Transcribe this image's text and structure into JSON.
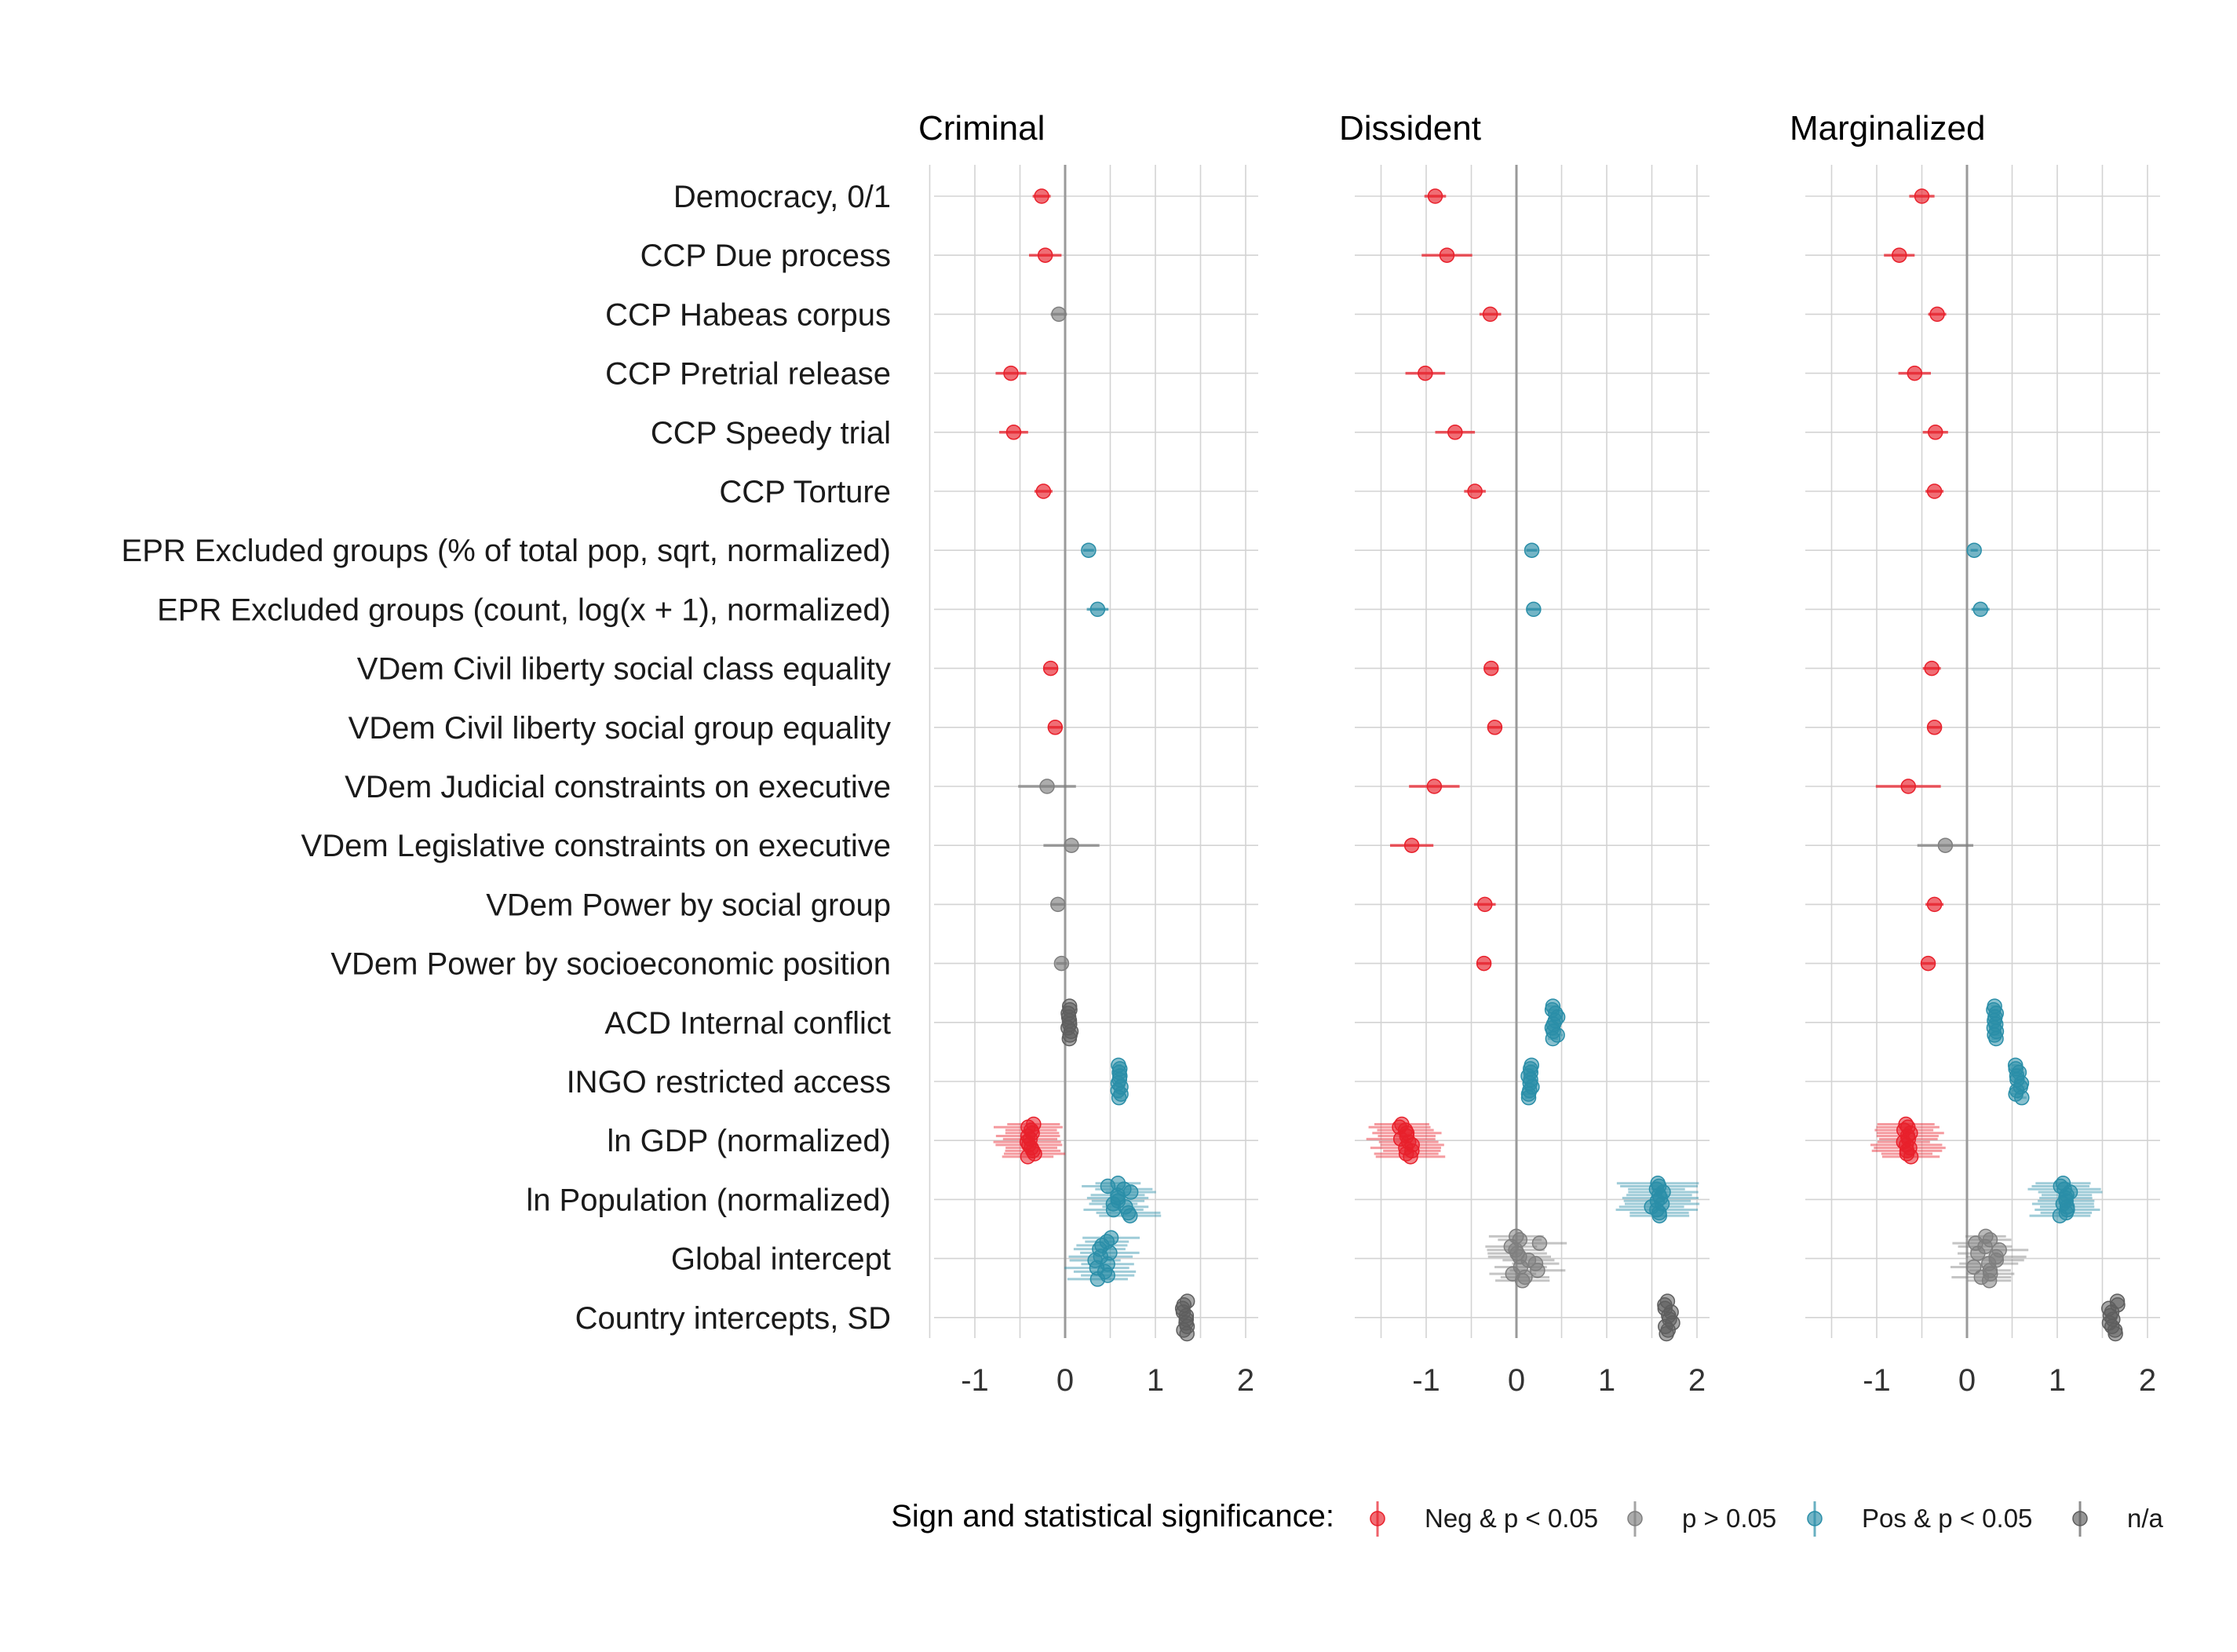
{
  "chart_data": {
    "type": "scatter",
    "subtype": "coefficient-plot",
    "facets": [
      "Criminal",
      "Dissident",
      "Marginalized"
    ],
    "rows": [
      "Democracy, 0/1",
      "CCP Due process",
      "CCP Habeas corpus",
      "CCP Pretrial release",
      "CCP Speedy trial",
      "CCP Torture",
      "EPR Excluded groups (% of total pop, sqrt, normalized)",
      "EPR Excluded groups (count, log(x + 1), normalized)",
      "VDem Civil liberty social class equality",
      "VDem Civil liberty social group equality",
      "VDem Judicial constraints on executive",
      "VDem Legislative constraints on executive",
      "VDem Power by social group",
      "VDem Power by socioeconomic position",
      "ACD Internal conflict",
      "INGO restricted access",
      "ln GDP (normalized)",
      "ln Population (normalized)",
      "Global intercept",
      "Country intercepts, SD"
    ],
    "x_ticks": [
      "-1",
      "0",
      "1",
      "2"
    ],
    "x_tick_values": [
      -1,
      0,
      1,
      2
    ],
    "xlim": [
      -1.45,
      2.2
    ],
    "legend": {
      "title": "Sign and statistical significance:",
      "entries": [
        {
          "label": "Neg & p < 0.05",
          "color": "#e8202b"
        },
        {
          "label": "p > 0.05",
          "color": "#7f7f7f"
        },
        {
          "label": "Pos & p < 0.05",
          "color": "#2a8ea8"
        },
        {
          "label": "n/a",
          "color": "#5e5e5e"
        }
      ],
      "position": "bottom"
    },
    "colors": {
      "neg": "#e8202b",
      "ns": "#7f7f7f",
      "pos": "#2a8ea8",
      "na": "#5e5e5e"
    },
    "estimates": {
      "Criminal": [
        {
          "est": -0.26,
          "lo": -0.36,
          "hi": -0.16,
          "sig": "neg"
        },
        {
          "est": -0.22,
          "lo": -0.4,
          "hi": -0.04,
          "sig": "neg"
        },
        {
          "est": -0.07,
          "lo": -0.16,
          "hi": 0.02,
          "sig": "ns"
        },
        {
          "est": -0.6,
          "lo": -0.77,
          "hi": -0.43,
          "sig": "neg"
        },
        {
          "est": -0.57,
          "lo": -0.73,
          "hi": -0.41,
          "sig": "neg"
        },
        {
          "est": -0.24,
          "lo": -0.34,
          "hi": -0.14,
          "sig": "neg"
        },
        {
          "est": 0.26,
          "lo": 0.2,
          "hi": 0.32,
          "sig": "pos"
        },
        {
          "est": 0.36,
          "lo": 0.24,
          "hi": 0.48,
          "sig": "pos"
        },
        {
          "est": -0.16,
          "lo": -0.24,
          "hi": -0.08,
          "sig": "neg"
        },
        {
          "est": -0.11,
          "lo": -0.19,
          "hi": -0.03,
          "sig": "neg"
        },
        {
          "est": -0.2,
          "lo": -0.52,
          "hi": 0.12,
          "sig": "ns"
        },
        {
          "est": 0.07,
          "lo": -0.24,
          "hi": 0.38,
          "sig": "ns"
        },
        {
          "est": -0.08,
          "lo": -0.16,
          "hi": 0.0,
          "sig": "ns"
        },
        {
          "est": -0.04,
          "lo": -0.1,
          "hi": 0.02,
          "sig": "ns"
        }
      ],
      "Dissident": [
        {
          "est": -0.9,
          "lo": -1.02,
          "hi": -0.78,
          "sig": "neg"
        },
        {
          "est": -0.77,
          "lo": -1.05,
          "hi": -0.49,
          "sig": "neg"
        },
        {
          "est": -0.29,
          "lo": -0.41,
          "hi": -0.17,
          "sig": "neg"
        },
        {
          "est": -1.01,
          "lo": -1.23,
          "hi": -0.79,
          "sig": "neg"
        },
        {
          "est": -0.68,
          "lo": -0.9,
          "hi": -0.46,
          "sig": "neg"
        },
        {
          "est": -0.46,
          "lo": -0.58,
          "hi": -0.34,
          "sig": "neg"
        },
        {
          "est": 0.17,
          "lo": 0.11,
          "hi": 0.23,
          "sig": "pos"
        },
        {
          "est": 0.19,
          "lo": 0.11,
          "hi": 0.27,
          "sig": "pos"
        },
        {
          "est": -0.28,
          "lo": -0.36,
          "hi": -0.2,
          "sig": "neg"
        },
        {
          "est": -0.24,
          "lo": -0.32,
          "hi": -0.16,
          "sig": "neg"
        },
        {
          "est": -0.91,
          "lo": -1.19,
          "hi": -0.63,
          "sig": "neg"
        },
        {
          "est": -1.16,
          "lo": -1.4,
          "hi": -0.92,
          "sig": "neg"
        },
        {
          "est": -0.35,
          "lo": -0.47,
          "hi": -0.23,
          "sig": "neg"
        },
        {
          "est": -0.36,
          "lo": -0.44,
          "hi": -0.28,
          "sig": "neg"
        }
      ],
      "Marginalized": [
        {
          "est": -0.5,
          "lo": -0.64,
          "hi": -0.36,
          "sig": "neg"
        },
        {
          "est": -0.75,
          "lo": -0.92,
          "hi": -0.58,
          "sig": "neg"
        },
        {
          "est": -0.33,
          "lo": -0.43,
          "hi": -0.23,
          "sig": "neg"
        },
        {
          "est": -0.58,
          "lo": -0.76,
          "hi": -0.4,
          "sig": "neg"
        },
        {
          "est": -0.35,
          "lo": -0.49,
          "hi": -0.21,
          "sig": "neg"
        },
        {
          "est": -0.36,
          "lo": -0.46,
          "hi": -0.26,
          "sig": "neg"
        },
        {
          "est": 0.08,
          "lo": 0.04,
          "hi": 0.12,
          "sig": "pos"
        },
        {
          "est": 0.15,
          "lo": 0.05,
          "hi": 0.25,
          "sig": "pos"
        },
        {
          "est": -0.39,
          "lo": -0.49,
          "hi": -0.29,
          "sig": "neg"
        },
        {
          "est": -0.36,
          "lo": -0.44,
          "hi": -0.28,
          "sig": "neg"
        },
        {
          "est": -0.65,
          "lo": -1.01,
          "hi": -0.29,
          "sig": "neg"
        },
        {
          "est": -0.24,
          "lo": -0.55,
          "hi": 0.07,
          "sig": "ns"
        },
        {
          "est": -0.36,
          "lo": -0.46,
          "hi": -0.26,
          "sig": "neg"
        },
        {
          "est": -0.43,
          "lo": -0.5,
          "hi": -0.36,
          "sig": "neg"
        }
      ]
    },
    "clusters": {
      "Criminal": [
        {
          "sig": "na",
          "center": 0.05,
          "spread": 0.02,
          "halfwidth": 0.0,
          "n": 10,
          "vspread": 0.55
        },
        {
          "sig": "pos",
          "center": 0.6,
          "spread": 0.02,
          "halfwidth": 0.03,
          "n": 10,
          "vspread": 0.55
        },
        {
          "sig": "neg",
          "center": -0.37,
          "spread": 0.06,
          "halfwidth": 0.32,
          "n": 12,
          "vspread": 0.55
        },
        {
          "sig": "pos",
          "center": 0.6,
          "spread": 0.14,
          "halfwidth": 0.3,
          "n": 12,
          "vspread": 0.55
        },
        {
          "sig": "pos",
          "center": 0.45,
          "spread": 0.12,
          "halfwidth": 0.3,
          "n": 12,
          "vspread": 0.7
        },
        {
          "sig": "na",
          "center": 1.33,
          "spread": 0.03,
          "halfwidth": 0.0,
          "n": 10,
          "vspread": 0.55
        }
      ],
      "Dissident": [
        {
          "sig": "pos",
          "center": 0.43,
          "spread": 0.04,
          "halfwidth": 0.07,
          "n": 10,
          "vspread": 0.55
        },
        {
          "sig": "pos",
          "center": 0.16,
          "spread": 0.03,
          "halfwidth": 0.05,
          "n": 10,
          "vspread": 0.55
        },
        {
          "sig": "neg",
          "center": -1.22,
          "spread": 0.08,
          "halfwidth": 0.33,
          "n": 12,
          "vspread": 0.55
        },
        {
          "sig": "pos",
          "center": 1.56,
          "spread": 0.07,
          "halfwidth": 0.38,
          "n": 12,
          "vspread": 0.55
        },
        {
          "sig": "ns",
          "center": 0.1,
          "spread": 0.17,
          "halfwidth": 0.3,
          "n": 14,
          "vspread": 0.75
        },
        {
          "sig": "na",
          "center": 1.69,
          "spread": 0.05,
          "halfwidth": 0.0,
          "n": 10,
          "vspread": 0.55
        }
      ],
      "Marginalized": [
        {
          "sig": "pos",
          "center": 0.31,
          "spread": 0.02,
          "halfwidth": 0.05,
          "n": 10,
          "vspread": 0.55
        },
        {
          "sig": "pos",
          "center": 0.57,
          "spread": 0.04,
          "halfwidth": 0.05,
          "n": 10,
          "vspread": 0.55
        },
        {
          "sig": "neg",
          "center": -0.66,
          "spread": 0.05,
          "halfwidth": 0.34,
          "n": 12,
          "vspread": 0.55
        },
        {
          "sig": "pos",
          "center": 1.1,
          "spread": 0.07,
          "halfwidth": 0.34,
          "n": 12,
          "vspread": 0.55
        },
        {
          "sig": "ns",
          "center": 0.22,
          "spread": 0.15,
          "halfwidth": 0.28,
          "n": 14,
          "vspread": 0.75
        },
        {
          "sig": "na",
          "center": 1.64,
          "spread": 0.07,
          "halfwidth": 0.0,
          "n": 10,
          "vspread": 0.55
        }
      ]
    },
    "grid": true
  }
}
